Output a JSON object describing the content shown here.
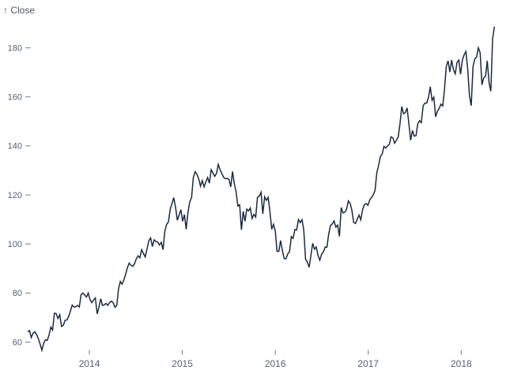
{
  "header": {
    "y_axis_title": "↑ Close"
  },
  "colors": {
    "background": "#ffffff",
    "line": "#1b2a41",
    "axis_text": "#55616f",
    "tick_mark": "#6e7a88",
    "axis_title": "#4a5564"
  },
  "chart_data": {
    "type": "line",
    "title": "",
    "xlabel": "",
    "ylabel": "Close",
    "grid": false,
    "legend": "none",
    "x_ticks": [
      2014,
      2015,
      2016,
      2017,
      2018
    ],
    "y_ticks": [
      60,
      80,
      100,
      120,
      140,
      160,
      180
    ],
    "x_domain": [
      2013.336,
      2018.38
    ],
    "y_domain": [
      56,
      190.5
    ],
    "x_start_year": 2013.336,
    "x_step_years": 0.019165,
    "series_name": "Close",
    "values": [
      64.3,
      64.7,
      61.9,
      63.6,
      64.2,
      63.1,
      61.4,
      59.1,
      56.7,
      59.6,
      60.9,
      60.7,
      62.9,
      66.1,
      64.9,
      71.8,
      71.6,
      69.6,
      71.2,
      66.4,
      66.8,
      68.9,
      69.0,
      70.4,
      72.7,
      75.1,
      74.3,
      74.4,
      75.0,
      74.3,
      79.4,
      80.0,
      79.2,
      78.4,
      80.0,
      77.3,
      76.1,
      77.2,
      78.0,
      71.5,
      74.2,
      77.7,
      75.0,
      75.2,
      75.8,
      75.0,
      76.1,
      76.7,
      76.0,
      74.2,
      75.0,
      81.7,
      84.7,
      83.6,
      85.4,
      87.7,
      90.4,
      92.2,
      91.3,
      90.9,
      92.0,
      94.0,
      95.2,
      94.4,
      97.7,
      96.1,
      94.7,
      98.0,
      101.3,
      102.5,
      99.0,
      101.7,
      101.0,
      100.8,
      99.6,
      100.7,
      97.7,
      105.2,
      108.0,
      109.0,
      114.2,
      116.5,
      118.9,
      115.0,
      109.7,
      111.8,
      114.0,
      109.3,
      112.0,
      106.0,
      113.0,
      117.2,
      118.9,
      127.1,
      129.5,
      128.5,
      126.6,
      123.6,
      125.9,
      123.3,
      125.3,
      127.1,
      124.8,
      130.3,
      129.0,
      127.6,
      128.8,
      132.5,
      130.3,
      128.7,
      127.2,
      126.6,
      126.8,
      126.4,
      123.3,
      129.6,
      124.5,
      121.3,
      115.5,
      116.0,
      105.8,
      113.3,
      109.3,
      114.2,
      113.5,
      114.7,
      110.4,
      112.1,
      111.0,
      119.1,
      119.5,
      121.1,
      112.3,
      119.3,
      117.8,
      119.0,
      113.2,
      106.0,
      108.0,
      105.3,
      97.0,
      97.1,
      101.4,
      97.3,
      94.0,
      94.0,
      96.0,
      96.9,
      103.0,
      102.3,
      105.9,
      105.7,
      110.0,
      108.7,
      109.9,
      105.7,
      93.7,
      92.7,
      90.5,
      95.2,
      100.3,
      97.9,
      98.8,
      95.3,
      93.4,
      95.9,
      96.7,
      98.8,
      98.7,
      104.2,
      107.5,
      108.2,
      109.4,
      106.9,
      107.7,
      103.1,
      114.9,
      112.7,
      113.0,
      114.1,
      117.6,
      116.6,
      113.7,
      108.8,
      108.4,
      110.1,
      111.8,
      109.9,
      114.0,
      116.0,
      116.5,
      115.8,
      117.9,
      119.0,
      120.0,
      122.0,
      129.1,
      132.1,
      135.7,
      136.7,
      139.8,
      139.1,
      140.0,
      140.6,
      143.7,
      143.3,
      141.1,
      142.3,
      143.7,
      149.0,
      156.1,
      153.1,
      153.6,
      155.5,
      149.0,
      142.3,
      146.3,
      144.0,
      144.2,
      149.0,
      150.3,
      149.5,
      156.4,
      157.5,
      157.5,
      159.9,
      164.1,
      158.6,
      159.9,
      151.9,
      154.1,
      155.3,
      157.0,
      156.3,
      163.1,
      172.5,
      174.7,
      170.2,
      175.0,
      171.1,
      169.4,
      174.0,
      175.0,
      169.2,
      175.0,
      177.1,
      178.5,
      171.5,
      160.5,
      156.4,
      172.4,
      175.5,
      176.2,
      180.0,
      178.0,
      164.9,
      167.8,
      168.4,
      174.7,
      165.7,
      162.3,
      183.8,
      188.6
    ]
  }
}
